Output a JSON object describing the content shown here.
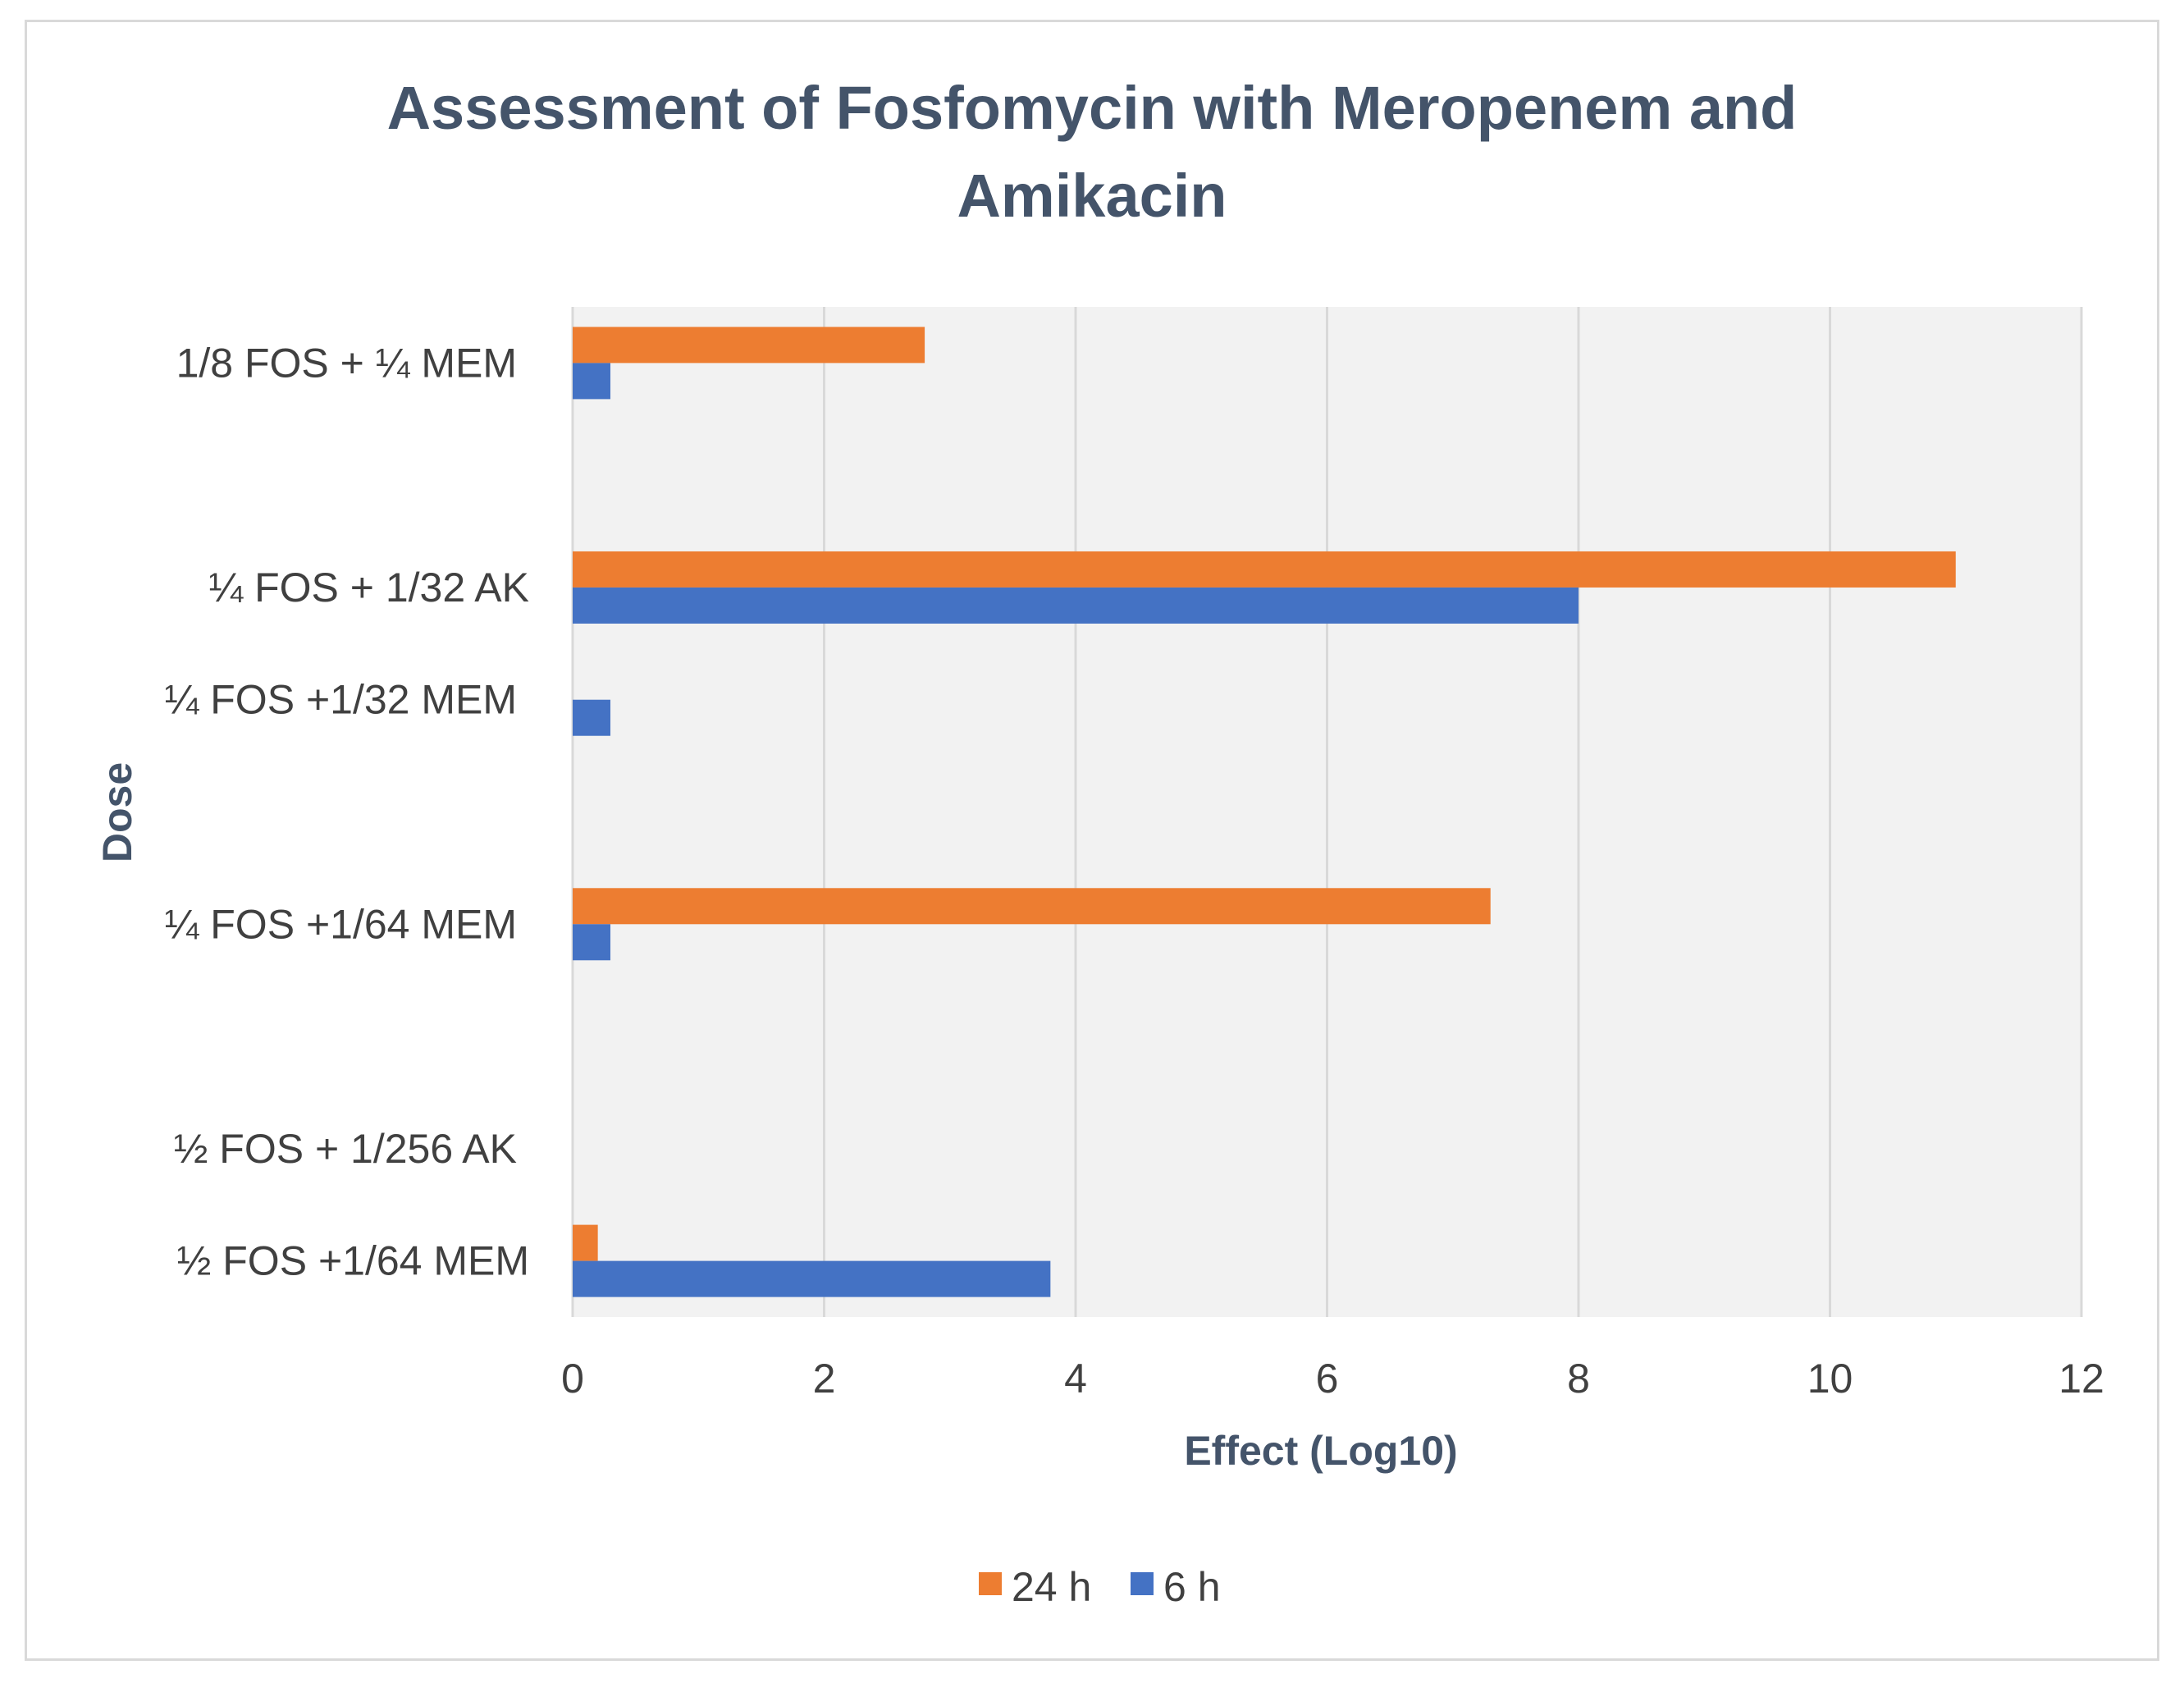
{
  "chart_data": {
    "type": "bar",
    "orientation": "horizontal",
    "title_lines": [
      "Assessment of Fosfomycin with Meropenem and",
      "Amikacin"
    ],
    "xlabel": "Effect (Log10)",
    "ylabel": "Dose",
    "xlim": [
      0,
      12
    ],
    "xticks": [
      "0",
      "2",
      "4",
      "6",
      "8",
      "10",
      "12"
    ],
    "grid": true,
    "legend_position": "bottom",
    "categories": [
      "1/8 FOS + ¼ MEM",
      "¼ FOS + 1/32 AK",
      "¼ FOS +1/32 MEM",
      "¼ FOS +1/64 MEM",
      "½ FOS + 1/256 AK",
      "½ FOS +1/64 MEM"
    ],
    "category_positions": [
      0.5,
      2.5,
      3.5,
      5.5,
      7.5,
      8.5
    ],
    "category_range": [
      0,
      9
    ],
    "series": [
      {
        "name": "24 h",
        "color": "#ed7d31",
        "values": [
          2.8,
          11,
          0,
          7.3,
          0,
          0.2
        ]
      },
      {
        "name": "6 h",
        "color": "#4472c4",
        "values": [
          0.3,
          8,
          0.3,
          0.3,
          0,
          3.8
        ]
      }
    ],
    "plot_background": "#f2f2f2",
    "gridline_color": "#d9d9d9"
  }
}
